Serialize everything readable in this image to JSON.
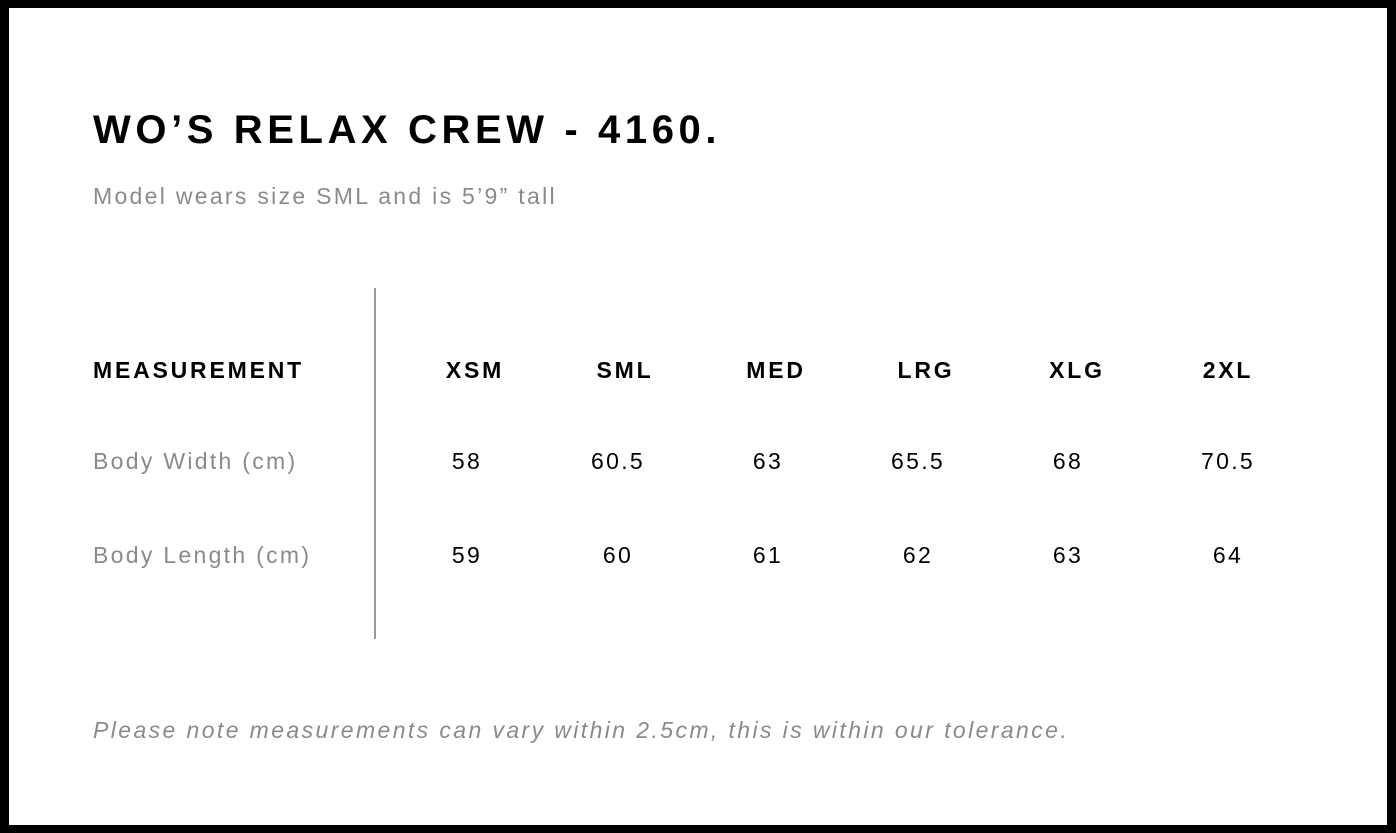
{
  "title": "WO’S RELAX CREW - 4160.",
  "subtitle": "Model wears size SML and is 5’9” tall",
  "table": {
    "header_label": "MEASUREMENT",
    "sizes": [
      "XSM",
      "SML",
      "MED",
      "LRG",
      "XLG",
      "2XL"
    ],
    "rows": [
      {
        "label": "Body Width (cm)",
        "values": [
          "58",
          "60.5",
          "63",
          "65.5",
          "68",
          "70.5"
        ]
      },
      {
        "label": "Body Length (cm)",
        "values": [
          "59",
          "60",
          "61",
          "62",
          "63",
          "64"
        ]
      }
    ]
  },
  "note": "Please note measurements can vary within 2.5cm, this is within our tolerance."
}
